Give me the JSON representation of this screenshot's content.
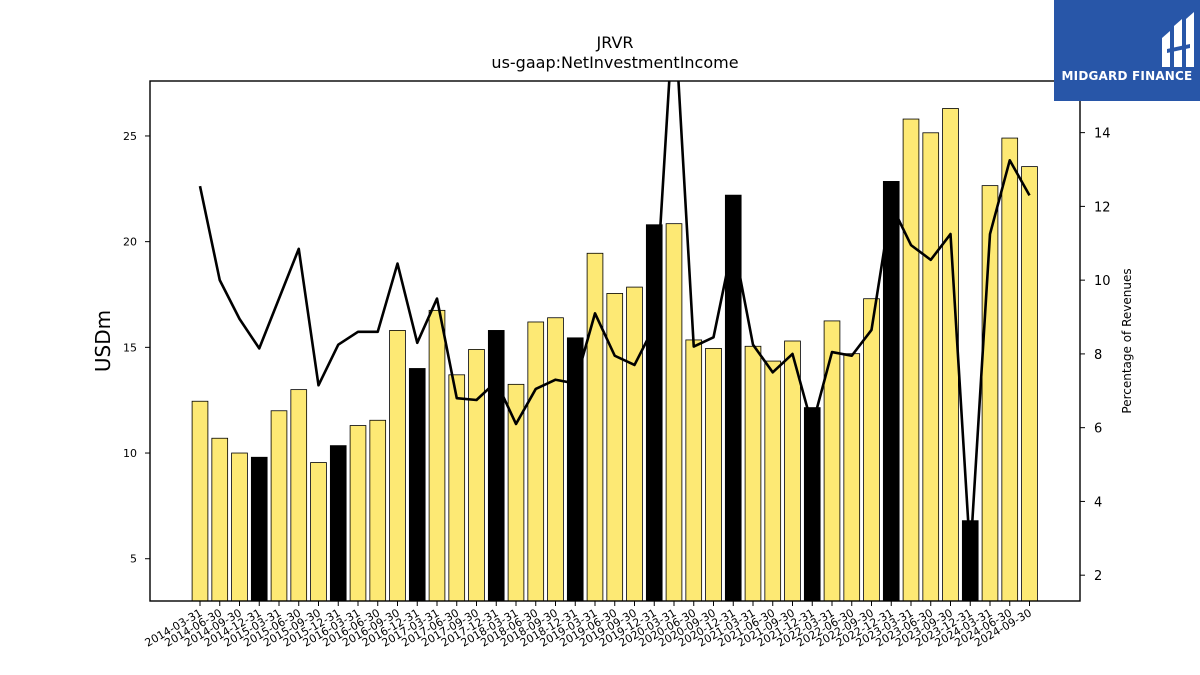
{
  "brand": {
    "name": "MIDGARD FINANCE",
    "icon": "midgard-logo-icon",
    "background": "#2856a8"
  },
  "colors": {
    "bar_normal": "#fde974",
    "bar_highlight": "#000000",
    "line": "#000000"
  },
  "chart_data": {
    "type": "bar",
    "title": "JRVR",
    "subtitle": "us-gaap:NetInvestmentIncome",
    "ylabel": "USDm",
    "y2label": "Percentage of Revenues",
    "ylim": [
      3.0,
      27.6
    ],
    "y2lim": [
      1.3,
      15.4
    ],
    "yticks": [
      5,
      10,
      15,
      20,
      25
    ],
    "y2ticks": [
      2,
      4,
      6,
      8,
      10,
      12,
      14
    ],
    "categories": [
      "2014-03-31",
      "2014-06-30",
      "2014-09-30",
      "2014-12-31",
      "2015-03-31",
      "2015-06-30",
      "2015-09-30",
      "2015-12-31",
      "2016-03-31",
      "2016-06-30",
      "2016-09-30",
      "2016-12-31",
      "2017-03-31",
      "2017-06-30",
      "2017-09-30",
      "2017-12-31",
      "2018-03-31",
      "2018-06-30",
      "2018-09-30",
      "2018-12-31",
      "2019-03-31",
      "2019-06-30",
      "2019-09-30",
      "2019-12-31",
      "2020-03-31",
      "2020-06-30",
      "2020-09-30",
      "2020-12-31",
      "2021-03-31",
      "2021-06-30",
      "2021-09-30",
      "2021-12-31",
      "2022-03-31",
      "2022-06-30",
      "2022-09-30",
      "2022-12-31",
      "2023-03-31",
      "2023-06-30",
      "2023-09-30",
      "2023-12-31",
      "2024-03-31",
      "2024-06-30",
      "2024-09-30"
    ],
    "series": [
      {
        "type": "bar",
        "values": [
          12.45,
          10.7,
          10.0,
          9.8,
          12.0,
          13.0,
          9.55,
          10.35,
          11.3,
          11.55,
          15.8,
          14.0,
          16.75,
          13.7,
          14.9,
          15.8,
          13.25,
          16.2,
          16.4,
          15.45,
          19.45,
          17.55,
          17.85,
          20.8,
          20.85,
          15.35,
          14.95,
          22.2,
          15.05,
          14.35,
          15.3,
          12.15,
          16.25,
          14.7,
          17.3,
          22.85,
          25.8,
          25.15,
          26.3,
          6.8,
          22.65,
          24.9,
          23.55
        ],
        "highlight": [
          false,
          false,
          false,
          true,
          false,
          false,
          false,
          true,
          false,
          false,
          false,
          true,
          false,
          false,
          false,
          true,
          false,
          false,
          false,
          true,
          false,
          false,
          false,
          true,
          false,
          false,
          false,
          true,
          false,
          false,
          false,
          true,
          false,
          false,
          false,
          true,
          false,
          false,
          false,
          true,
          false,
          false,
          false
        ]
      },
      {
        "type": "line",
        "axis": "right",
        "values": [
          12.55,
          10.0,
          8.95,
          8.15,
          9.5,
          10.85,
          7.15,
          8.25,
          8.6,
          8.6,
          10.45,
          8.3,
          9.5,
          6.8,
          6.75,
          7.25,
          6.1,
          7.05,
          7.3,
          7.2,
          9.1,
          7.95,
          7.7,
          8.75,
          17.5,
          8.2,
          8.45,
          11.05,
          8.25,
          7.5,
          8.0,
          6.05,
          8.05,
          7.95,
          8.65,
          12.05,
          10.95,
          10.55,
          11.25,
          2.55,
          11.25,
          13.25,
          12.3
        ]
      }
    ]
  }
}
